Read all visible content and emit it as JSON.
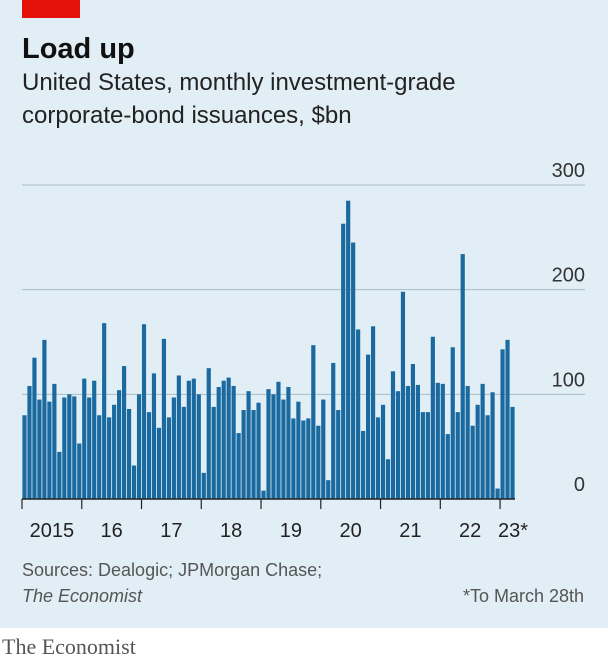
{
  "brand": "The Economist",
  "chart_data": {
    "type": "bar",
    "title": "Load up",
    "subtitle": "United States, monthly investment-grade corporate-bond issuances, $bn",
    "year_labels": [
      "2015",
      "16",
      "17",
      "18",
      "19",
      "20",
      "21",
      "22",
      "23*"
    ],
    "values": [
      80,
      108,
      135,
      95,
      152,
      93,
      110,
      45,
      97,
      100,
      98,
      53,
      115,
      97,
      113,
      80,
      168,
      78,
      90,
      104,
      127,
      86,
      32,
      100,
      167,
      83,
      120,
      68,
      153,
      78,
      97,
      118,
      88,
      113,
      115,
      100,
      25,
      125,
      88,
      107,
      113,
      116,
      108,
      63,
      85,
      103,
      85,
      92,
      8,
      105,
      100,
      112,
      95,
      107,
      77,
      93,
      75,
      77,
      147,
      70,
      95,
      18,
      130,
      85,
      263,
      285,
      245,
      162,
      65,
      138,
      165,
      78,
      90,
      38,
      122,
      103,
      198,
      108,
      129,
      109,
      83,
      83,
      155,
      111,
      110,
      62,
      145,
      83,
      234,
      108,
      70,
      90,
      110,
      80,
      102,
      10,
      143,
      152,
      88
    ],
    "color": "#1a6aa0",
    "ylim": [
      0,
      300
    ],
    "yticks": [
      0,
      100,
      200,
      300
    ],
    "grid": true,
    "source": "Sources: Dealogic; JPMorgan Chase;",
    "source_italic": "The Economist",
    "footnote": "*To March 28th"
  }
}
